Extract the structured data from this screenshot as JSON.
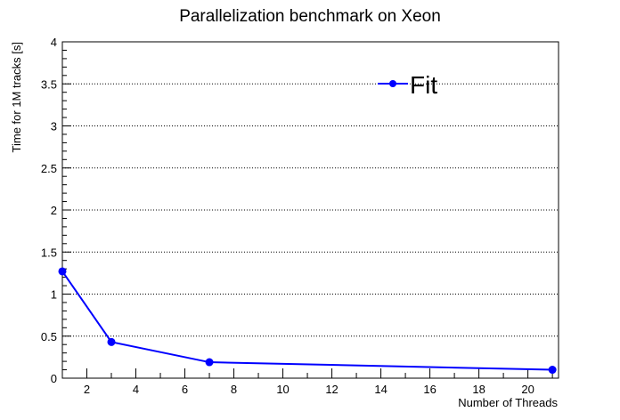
{
  "chart_data": {
    "type": "line",
    "title": "Parallelization benchmark on Xeon",
    "xlabel": "Number of Threads",
    "ylabel": "Time for 1M tracks [s]",
    "xlim": [
      1,
      21.25
    ],
    "ylim": [
      0,
      4
    ],
    "x_ticks": [
      2,
      4,
      6,
      8,
      10,
      12,
      14,
      16,
      18,
      20
    ],
    "y_ticks": [
      0,
      0.5,
      1,
      1.5,
      2,
      2.5,
      3,
      3.5,
      4
    ],
    "y_tick_labels": [
      "0",
      "0.5",
      "1",
      "1.5",
      "2",
      "2.5",
      "3",
      "3.5",
      "4"
    ],
    "grid": "horizontal dotted",
    "legend_position": "top-right",
    "series": [
      {
        "name": "Fit",
        "color": "#0000ff",
        "x": [
          1,
          3,
          7,
          21
        ],
        "y": [
          1.27,
          0.43,
          0.19,
          0.1
        ]
      }
    ]
  }
}
